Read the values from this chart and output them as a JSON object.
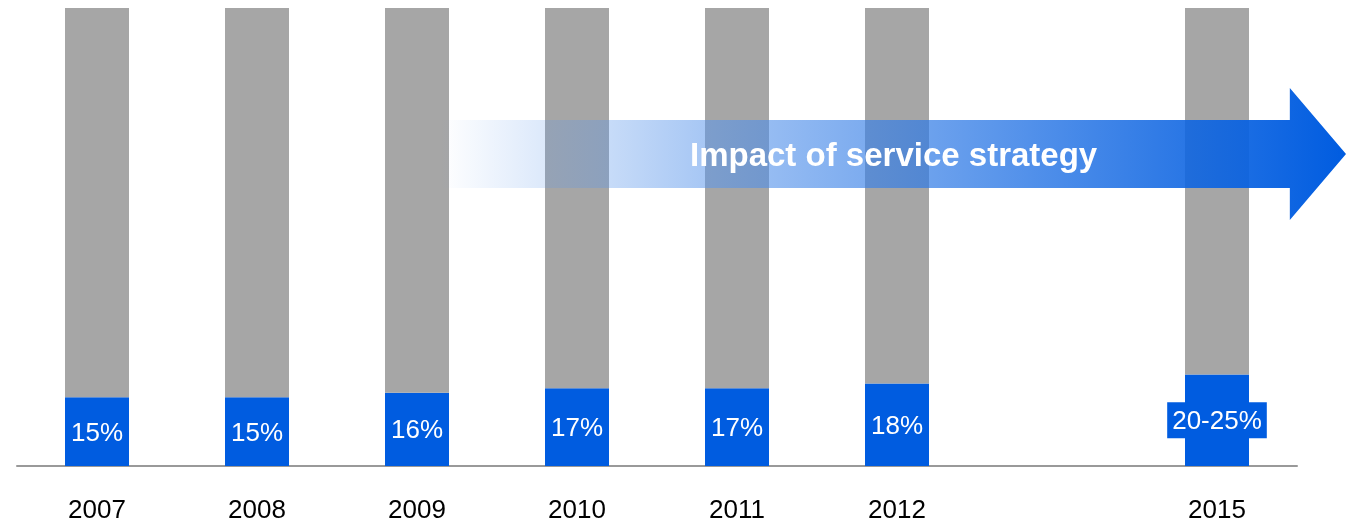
{
  "chart_data": {
    "type": "bar",
    "stacked": true,
    "grid": false,
    "ylim": [
      0,
      100
    ],
    "tick_labels": "x",
    "categories": [
      "2007",
      "2008",
      "2009",
      "2010",
      "2011",
      "2012",
      null,
      "2015"
    ],
    "series": [
      {
        "color": "#005ce0",
        "values": [
          15,
          15,
          16,
          17,
          17,
          18,
          null,
          20
        ],
        "value_labels": [
          "15%",
          "15%",
          "16%",
          "17%",
          "17%",
          "18%",
          null,
          "20-25%"
        ]
      },
      {
        "color": "#a6a6a6",
        "values": [
          85,
          85,
          84,
          83,
          83,
          82,
          null,
          80
        ]
      }
    ],
    "annotations": [
      "Impact of service strategy"
    ]
  }
}
